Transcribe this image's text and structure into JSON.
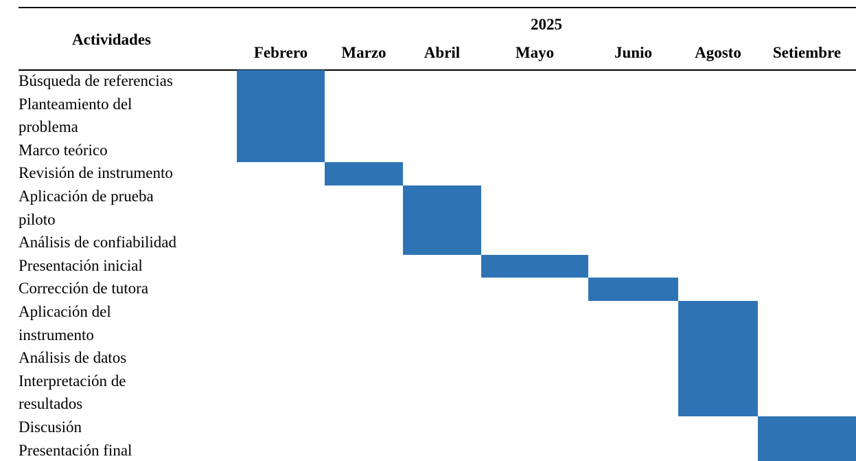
{
  "header": {
    "activities_label": "Actividades",
    "year": "2025"
  },
  "months": [
    "Febrero",
    "Marzo",
    "Abril",
    "Mayo",
    "Junio",
    "Agosto",
    "Setiembre"
  ],
  "activity_lines": [
    "Búsqueda de referencias",
    "Planteamiento del",
    "problema",
    "Marco teórico",
    "Revisión de instrumento",
    "Aplicación de prueba",
    "piloto",
    "Análisis de confiabilidad",
    "Presentación inicial",
    "Corrección de tutora",
    "Aplicación del",
    "instrumento",
    "Análisis de datos",
    "Interpretación de",
    "resultados",
    "Discusión",
    "Presentación final"
  ],
  "chart_data": {
    "type": "table",
    "title": "",
    "categories": [
      "Febrero",
      "Marzo",
      "Abril",
      "Mayo",
      "Junio",
      "Agosto",
      "Setiembre"
    ],
    "tasks": [
      {
        "name": "Búsqueda de referencias",
        "month": "Febrero"
      },
      {
        "name": "Planteamiento del problema",
        "month": "Febrero"
      },
      {
        "name": "Marco teórico",
        "month": "Febrero"
      },
      {
        "name": "Revisión de instrumento",
        "month": "Marzo"
      },
      {
        "name": "Aplicación de prueba piloto",
        "month": "Abril"
      },
      {
        "name": "Análisis de confiabilidad",
        "month": "Abril"
      },
      {
        "name": "Presentación inicial",
        "month": "Mayo"
      },
      {
        "name": "Corrección de tutora",
        "month": "Junio"
      },
      {
        "name": "Aplicación del instrumento",
        "month": "Agosto"
      },
      {
        "name": "Análisis de datos",
        "month": "Agosto"
      },
      {
        "name": "Interpretación de resultados",
        "month": "Agosto"
      },
      {
        "name": "Discusión",
        "month": "Setiembre"
      },
      {
        "name": "Presentación final",
        "month": "Setiembre"
      }
    ],
    "blocks": [
      {
        "month": "Febrero",
        "first_line": 0,
        "line_count": 4
      },
      {
        "month": "Marzo",
        "first_line": 4,
        "line_count": 1
      },
      {
        "month": "Abril",
        "first_line": 5,
        "line_count": 3
      },
      {
        "month": "Mayo",
        "first_line": 8,
        "line_count": 1
      },
      {
        "month": "Junio",
        "first_line": 9,
        "line_count": 1
      },
      {
        "month": "Agosto",
        "first_line": 10,
        "line_count": 5
      },
      {
        "month": "Setiembre",
        "first_line": 15,
        "line_count": 2
      }
    ],
    "bar_color": "#2E74B5"
  }
}
